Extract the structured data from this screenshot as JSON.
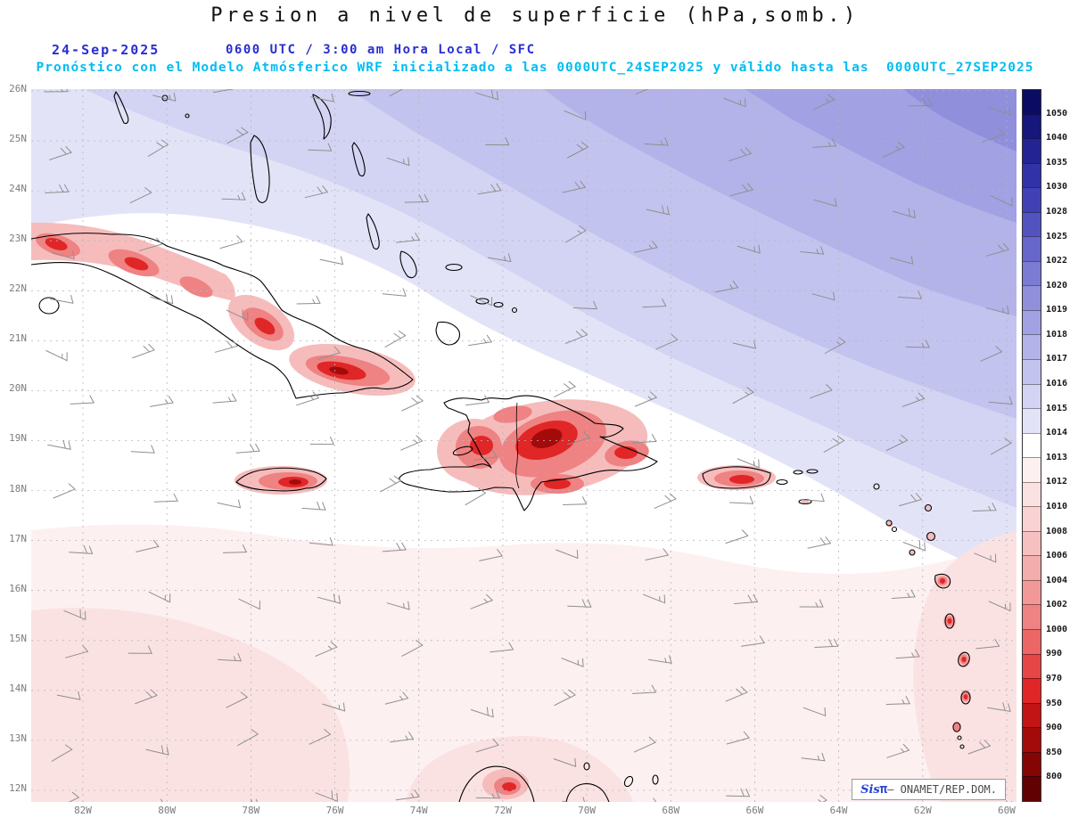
{
  "header": {
    "title": "Presion a nivel de superficie (hPa,somb.)",
    "date": "24-Sep-2025",
    "time_line": "0600 UTC / 3:00 am Hora Local / SFC",
    "forecast_note": "Pronóstico con el Modelo Atmósferico WRF inicializado a las 0000UTC_24SEP2025 y válido hasta las  0000UTC_27SEP2025",
    "date_color": "#2a2ed2",
    "note_color": "#00bdf2"
  },
  "axes": {
    "lat_labels": [
      "26N",
      "25N",
      "24N",
      "23N",
      "22N",
      "21N",
      "20N",
      "19N",
      "18N",
      "17N",
      "16N",
      "15N",
      "14N",
      "13N",
      "12N"
    ],
    "lon_labels": [
      "82W",
      "80W",
      "78W",
      "76W",
      "74W",
      "72W",
      "70W",
      "68W",
      "66W",
      "64W",
      "62W",
      "60W"
    ]
  },
  "colorbar": {
    "unit": "hPa",
    "tick_labels": [
      "1050",
      "1040",
      "1035",
      "1030",
      "1028",
      "1025",
      "1022",
      "1020",
      "1019",
      "1018",
      "1017",
      "1016",
      "1015",
      "1014",
      "1013",
      "1012",
      "1010",
      "1008",
      "1006",
      "1004",
      "1002",
      "1000",
      "990",
      "970",
      "950",
      "900",
      "850",
      "800"
    ],
    "cell_colors": [
      "#0b0b63",
      "#16167d",
      "#232394",
      "#3232a8",
      "#4141b5",
      "#5353c0",
      "#6666cb",
      "#7b7bd4",
      "#8f8fdc",
      "#a1a1e3",
      "#b3b3e9",
      "#c3c3ef",
      "#d3d3f3",
      "#e3e3f8",
      "#ffffff",
      "#fdf0f0",
      "#fbe2e2",
      "#f9d3d3",
      "#f6c0c0",
      "#f4adad",
      "#f29898",
      "#ef8282",
      "#ec6666",
      "#e74646",
      "#e02626",
      "#c21414",
      "#a30b0b",
      "#850505",
      "#620101"
    ]
  },
  "map": {
    "wind_barb": {
      "name": "wind-barb-icon",
      "color": "#8f8f8f",
      "flow": "easterly trade winds",
      "speed_kt": "5-15"
    },
    "land_outline_color": "#000000",
    "grid_color": "#b5b5c0"
  },
  "watermark": {
    "brand": "Sis",
    "pi": "π",
    "rest": "– ONAMET/REP.DOM."
  },
  "chart_data": {
    "type": "heatmap",
    "title": "Presion a nivel de superficie (hPa,somb.)",
    "units": "hPa",
    "x_axis": {
      "label": "longitude",
      "ticks": [
        "82W",
        "80W",
        "78W",
        "76W",
        "74W",
        "72W",
        "70W",
        "68W",
        "66W",
        "64W",
        "62W",
        "60W"
      ]
    },
    "y_axis": {
      "label": "latitude",
      "ticks": [
        "26N",
        "25N",
        "24N",
        "23N",
        "22N",
        "21N",
        "20N",
        "19N",
        "18N",
        "17N",
        "16N",
        "15N",
        "14N",
        "13N",
        "12N"
      ]
    },
    "levels_hPa": [
      800,
      850,
      900,
      950,
      970,
      990,
      1000,
      1002,
      1004,
      1006,
      1008,
      1010,
      1012,
      1013,
      1014,
      1015,
      1016,
      1017,
      1018,
      1019,
      1020,
      1022,
      1025,
      1028,
      1030,
      1035,
      1040,
      1050
    ],
    "field_summary": [
      {
        "region": "Northeast Atlantic (top-right quadrant)",
        "pressure_hPa": "1016-1022 (blue/periwinkle shading)"
      },
      {
        "region": "Bahamas and north of Cuba",
        "pressure_hPa": "1015-1016 (light lavender)"
      },
      {
        "region": "Central belt: Cuba south coast, Jamaica, Hispaniola, Puerto Rico",
        "pressure_hPa": "1013-1014 (white)"
      },
      {
        "region": "Southern Caribbean south of ~17N",
        "pressure_hPa": "1010-1012 (light pink)"
      },
      {
        "region": "Island interiors: Cuba, Jamaica, Hispaniola, Puerto Rico, Lesser Antilles, Guajira (terrain-reduced pressure)",
        "pressure_hPa": "<= 1000 (red shading)"
      }
    ],
    "wind_barbs": {
      "flow": "easterly trades",
      "speed_kt": "5-15",
      "color": "#8f8f8f"
    },
    "legend_position": "right vertical colorbar"
  }
}
